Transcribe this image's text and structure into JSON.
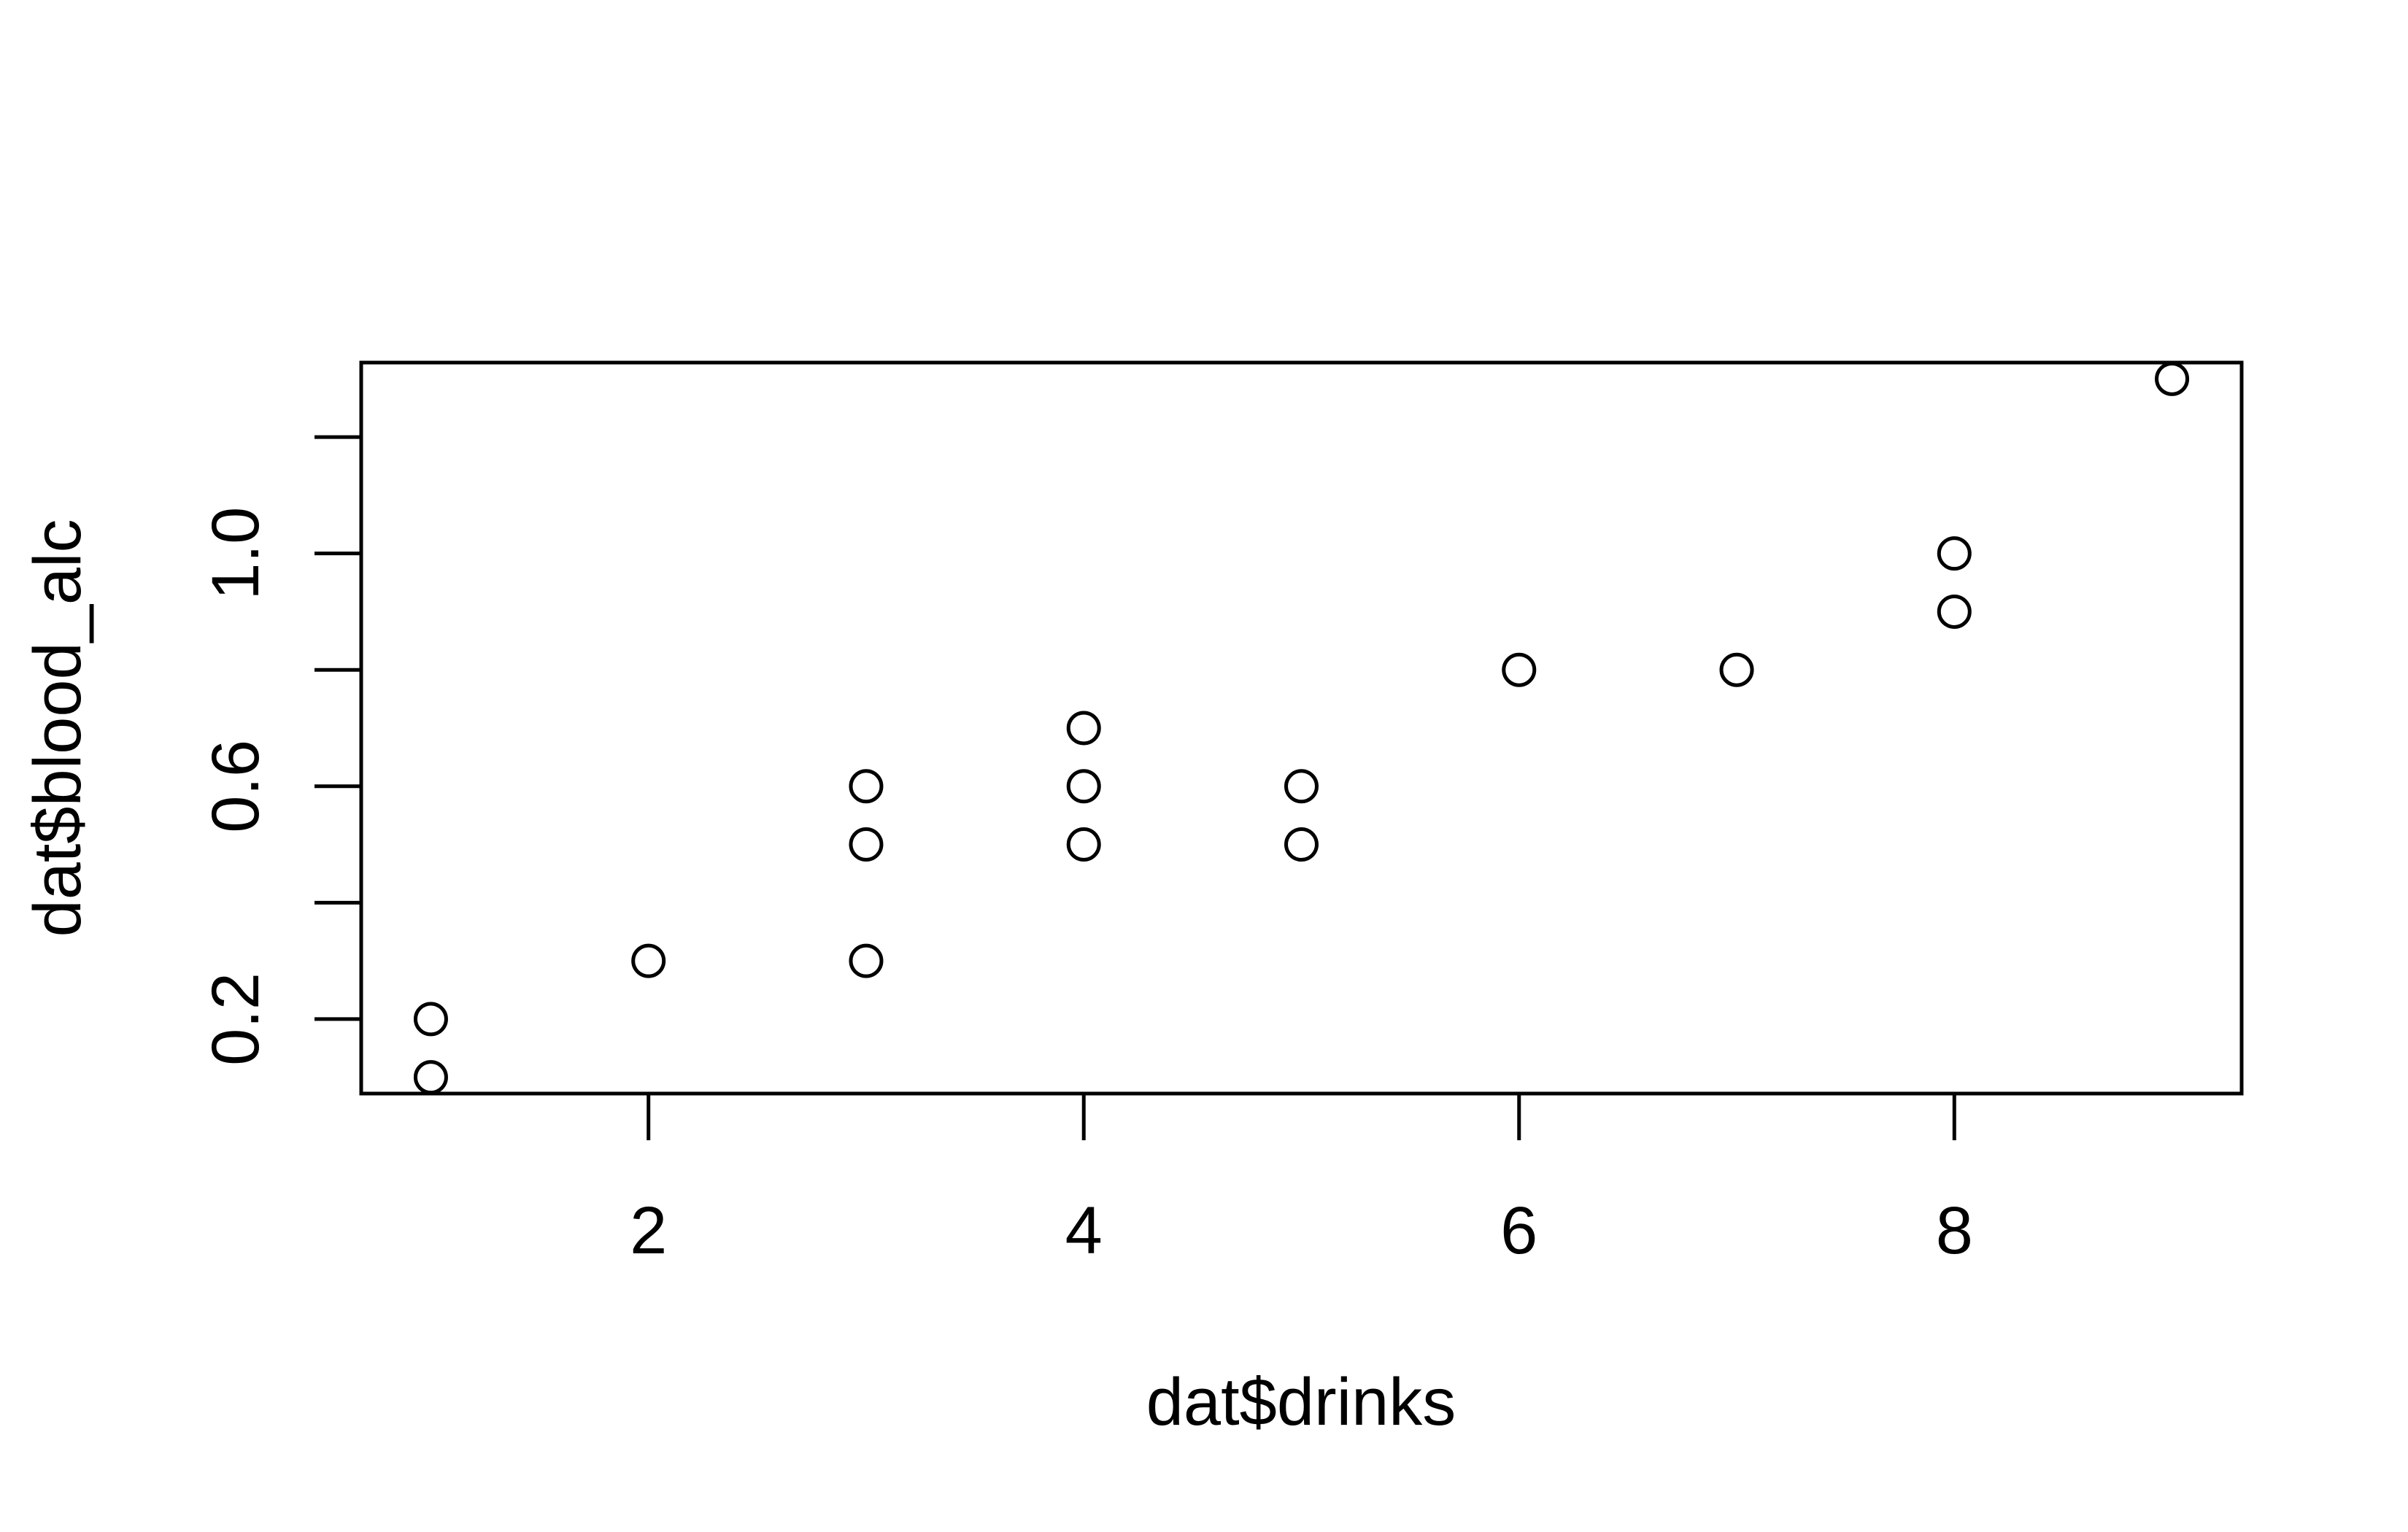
{
  "chart_data": {
    "type": "scatter",
    "title": "",
    "xlabel": "dat$drinks",
    "ylabel": "dat$blood_alc",
    "xlim": [
      0.68,
      9.32
    ],
    "ylim": [
      0.072,
      1.328
    ],
    "x_ticks": [
      2,
      4,
      6,
      8
    ],
    "x_tick_labels": [
      "2",
      "4",
      "6",
      "8"
    ],
    "y_ticks": [
      0.2,
      0.4,
      0.6,
      0.8,
      1.0,
      1.2
    ],
    "y_tick_labels": [
      "0.2",
      "",
      "0.6",
      "",
      "1.0",
      ""
    ],
    "grid": false,
    "legend": "none",
    "marker": "open-circle",
    "color": "#000000",
    "series": [
      {
        "x": [
          1,
          1,
          2,
          3,
          3,
          3,
          4,
          4,
          4,
          5,
          5,
          6,
          7,
          8,
          8,
          9
        ],
        "y": [
          0.1,
          0.2,
          0.3,
          0.3,
          0.5,
          0.6,
          0.5,
          0.6,
          0.7,
          0.5,
          0.6,
          0.8,
          0.8,
          0.9,
          1.0,
          1.3
        ]
      }
    ]
  }
}
